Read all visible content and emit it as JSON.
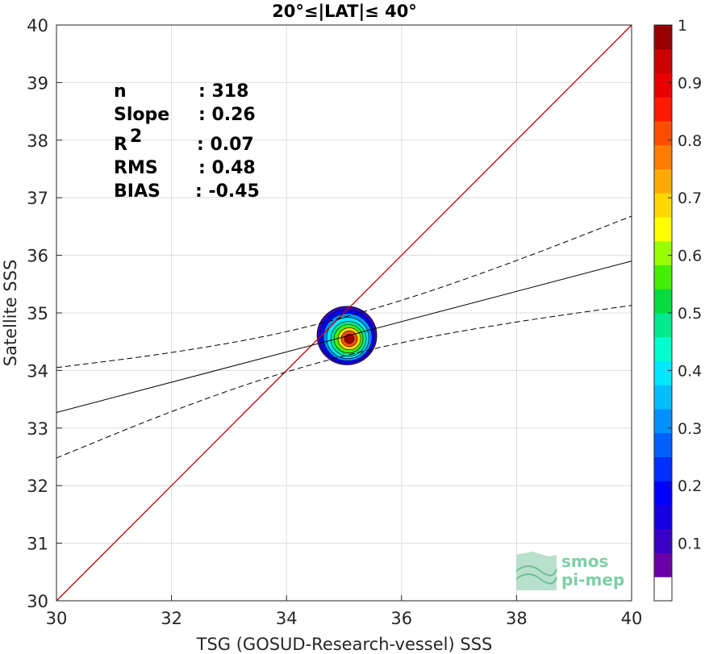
{
  "chart_data": {
    "type": "heatmap",
    "title": "20°≤|LAT|≤ 40°",
    "xlabel": "TSG (GOSUD-Research-vessel) SSS",
    "ylabel": "Satellite SSS",
    "xlim": [
      30,
      40
    ],
    "ylim": [
      30,
      40
    ],
    "xticks": [
      "30",
      "32",
      "34",
      "36",
      "38",
      "40"
    ],
    "yticks": [
      "30",
      "31",
      "32",
      "33",
      "34",
      "35",
      "36",
      "37",
      "38",
      "39",
      "40"
    ],
    "grid": true,
    "density_center": {
      "x": 35.05,
      "y": 34.55
    },
    "density_peak": 1,
    "identity_line": {
      "color": "#cc0000",
      "from": [
        30,
        30
      ],
      "to": [
        40,
        40
      ]
    },
    "regression_line": {
      "from": [
        30,
        33.27
      ],
      "to": [
        40,
        35.9
      ]
    },
    "confidence_upper": {
      "x": [
        30,
        32,
        34,
        36,
        38,
        40
      ],
      "y": [
        34.05,
        34.3,
        34.65,
        35.2,
        35.9,
        36.68
      ]
    },
    "confidence_lower": {
      "x": [
        30,
        32,
        34,
        36,
        38,
        40
      ],
      "y": [
        32.48,
        33.3,
        34.0,
        34.5,
        34.85,
        35.13
      ]
    },
    "stats": [
      {
        "label": "n",
        "value": ": 318"
      },
      {
        "label": "Slope",
        "value": ": 0.26"
      },
      {
        "label": "R",
        "sup": "2",
        "value": ": 0.07"
      },
      {
        "label": "RMS",
        "value": ": 0.48"
      },
      {
        "label": "BIAS",
        "value": ": -0.45"
      }
    ],
    "colorbar": {
      "min": 0,
      "max": 1,
      "tick_labels": [
        "0.1",
        "0.2",
        "0.3",
        "0.4",
        "0.5",
        "0.6",
        "0.7",
        "0.8",
        "0.9",
        "1"
      ],
      "colors": [
        "#ffffff",
        "#6a00a8",
        "#3a00c8",
        "#1400e0",
        "#0000ff",
        "#0030ff",
        "#0060ff",
        "#0090ff",
        "#00bfff",
        "#00e8ff",
        "#00ffcc",
        "#00e890",
        "#00dd40",
        "#44ee00",
        "#99ff00",
        "#ffff00",
        "#ffd800",
        "#ffaa00",
        "#ff7d00",
        "#ff4d00",
        "#ff1a00",
        "#e80000",
        "#cc0000",
        "#990000"
      ]
    }
  },
  "logo": {
    "line1": "smos",
    "line2": "pi-mep"
  }
}
